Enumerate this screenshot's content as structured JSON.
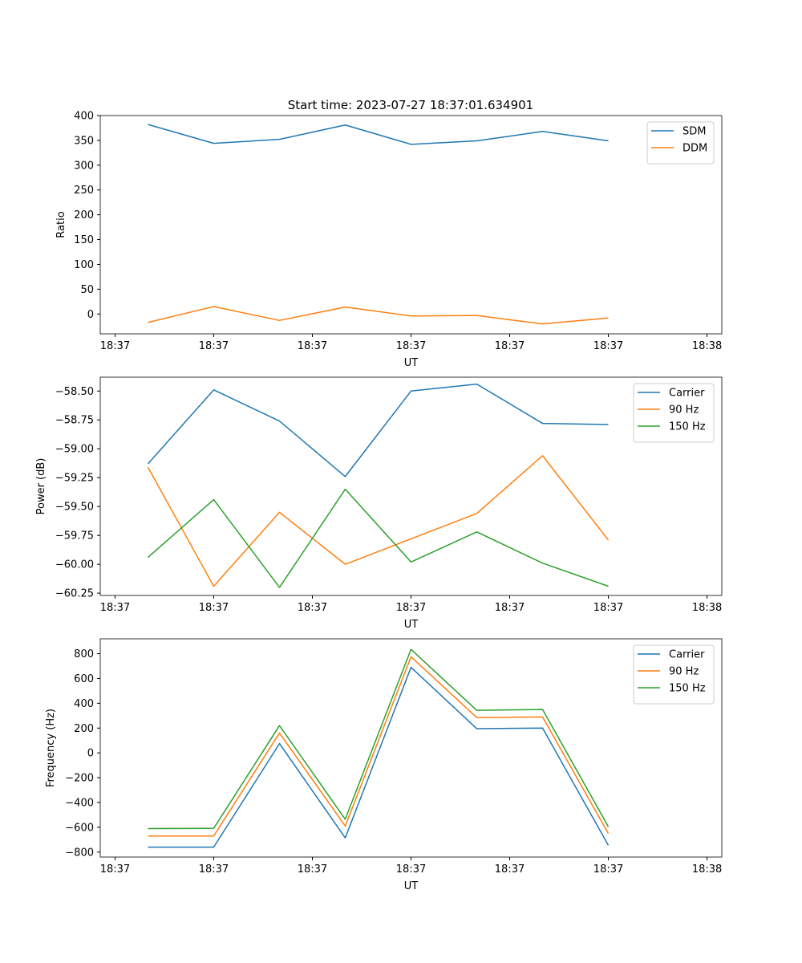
{
  "figure": {
    "title": "Start time: 2023-07-27 18:37:01.634901"
  },
  "chart_data": [
    {
      "type": "line",
      "title": "Start time: 2023-07-27 18:37:01.634901",
      "xlabel": "UT",
      "ylabel": "Ratio",
      "x": [
        1,
        2,
        3,
        4,
        5,
        6,
        7,
        8
      ],
      "xlim": [
        0.275,
        9.725
      ],
      "xticks": [
        0.5,
        2,
        3.5,
        5,
        6.5,
        8,
        9.5
      ],
      "xtick_labels": [
        "18:37",
        "18:37",
        "18:37",
        "18:37",
        "18:37",
        "18:37",
        "18:38"
      ],
      "ylim": [
        -40,
        400
      ],
      "yticks": [
        0,
        50,
        100,
        150,
        200,
        250,
        300,
        350,
        400
      ],
      "ytick_labels": [
        "0",
        "50",
        "100",
        "150",
        "200",
        "250",
        "300",
        "350",
        "400"
      ],
      "legend": "top-right",
      "series": [
        {
          "name": "SDM",
          "color": "#1f77b4",
          "values": [
            382,
            344,
            352,
            381,
            342,
            349,
            368,
            349
          ]
        },
        {
          "name": "DDM",
          "color": "#ff7f0e",
          "values": [
            -17,
            15,
            -13,
            14,
            -4,
            -3,
            -20,
            -8
          ]
        }
      ]
    },
    {
      "type": "line",
      "title": "",
      "xlabel": "UT",
      "ylabel": "Power (dB)",
      "x": [
        1,
        2,
        3,
        4,
        5,
        6,
        7,
        8
      ],
      "xlim": [
        0.275,
        9.725
      ],
      "xticks": [
        0.5,
        2,
        3.5,
        5,
        6.5,
        8,
        9.5
      ],
      "xtick_labels": [
        "18:37",
        "18:37",
        "18:37",
        "18:37",
        "18:37",
        "18:37",
        "18:38"
      ],
      "ylim": [
        -60.27,
        -58.38
      ],
      "yticks": [
        -60.25,
        -60.0,
        -59.75,
        -59.5,
        -59.25,
        -59.0,
        -58.75,
        -58.5
      ],
      "ytick_labels": [
        "−60.25",
        "−60.00",
        "−59.75",
        "−59.50",
        "−59.25",
        "−59.00",
        "−58.75",
        "−58.50"
      ],
      "legend": "top-right",
      "series": [
        {
          "name": "Carrier",
          "color": "#1f77b4",
          "values": [
            -59.13,
            -58.49,
            -58.76,
            -59.24,
            -58.5,
            -58.44,
            -58.78,
            -58.79
          ]
        },
        {
          "name": "90 Hz",
          "color": "#ff7f0e",
          "values": [
            -59.16,
            -60.19,
            -59.55,
            -60.0,
            -59.78,
            -59.56,
            -59.06,
            -59.79
          ]
        },
        {
          "name": "150 Hz",
          "color": "#2ca02c",
          "values": [
            -59.94,
            -59.44,
            -60.2,
            -59.35,
            -59.98,
            -59.72,
            -59.99,
            -60.19
          ]
        }
      ]
    },
    {
      "type": "line",
      "title": "",
      "xlabel": "UT",
      "ylabel": "Frequency (Hz)",
      "x": [
        1,
        2,
        3,
        4,
        5,
        6,
        7,
        8
      ],
      "xlim": [
        0.275,
        9.725
      ],
      "xticks": [
        0.5,
        2,
        3.5,
        5,
        6.5,
        8,
        9.5
      ],
      "xtick_labels": [
        "18:37",
        "18:37",
        "18:37",
        "18:37",
        "18:37",
        "18:37",
        "18:38"
      ],
      "ylim": [
        -840,
        920
      ],
      "yticks": [
        -800,
        -600,
        -400,
        -200,
        0,
        200,
        400,
        600,
        800
      ],
      "ytick_labels": [
        "−800",
        "−600",
        "−400",
        "−200",
        "0",
        "200",
        "400",
        "600",
        "800"
      ],
      "legend": "top-right",
      "series": [
        {
          "name": "Carrier",
          "color": "#1f77b4",
          "values": [
            -760,
            -760,
            75,
            -685,
            690,
            195,
            200,
            -745
          ]
        },
        {
          "name": "90 Hz",
          "color": "#ff7f0e",
          "values": [
            -670,
            -670,
            160,
            -590,
            775,
            285,
            290,
            -650
          ]
        },
        {
          "name": "150 Hz",
          "color": "#2ca02c",
          "values": [
            -610,
            -608,
            220,
            -535,
            835,
            343,
            350,
            -595
          ]
        }
      ]
    }
  ]
}
